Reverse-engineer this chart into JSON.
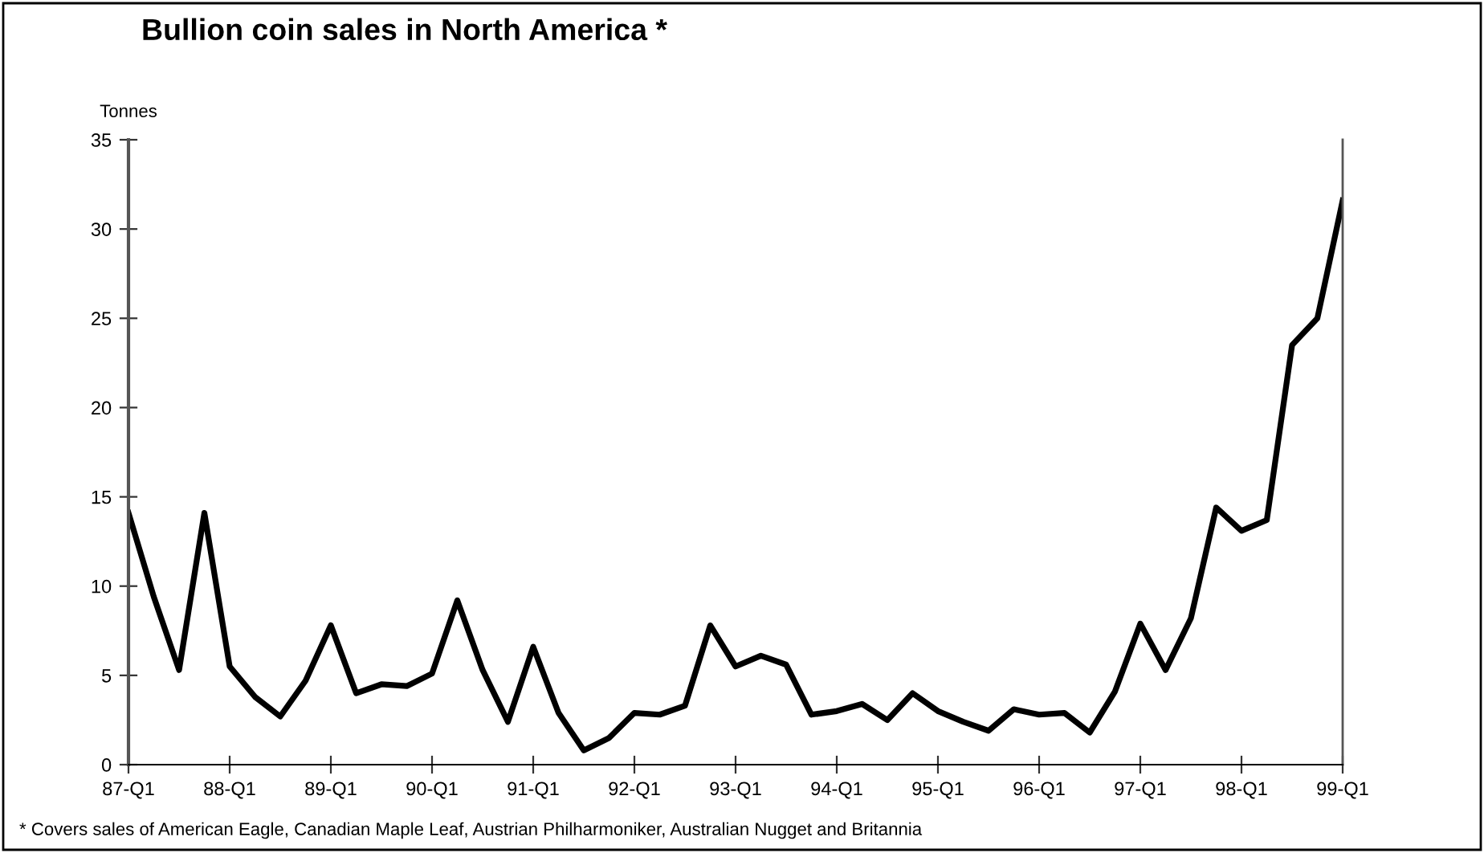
{
  "chart_data": {
    "type": "line",
    "title": "Bullion coin sales in North America *",
    "ylabel": "Tonnes",
    "categories": [
      "87-Q1",
      null,
      null,
      null,
      "88-Q1",
      null,
      null,
      null,
      "89-Q1",
      null,
      null,
      null,
      "90-Q1",
      null,
      null,
      null,
      "91-Q1",
      null,
      null,
      null,
      "92-Q1",
      null,
      null,
      null,
      "93-Q1",
      null,
      null,
      null,
      "94-Q1",
      null,
      null,
      null,
      "95-Q1",
      null,
      null,
      null,
      "96-Q1",
      null,
      null,
      null,
      "97-Q1",
      null,
      null,
      null,
      "98-Q1",
      null,
      null,
      null,
      "99-Q1"
    ],
    "series": [
      {
        "color": "#000000",
        "values": [
          14.1,
          9.4,
          5.3,
          14.1,
          5.5,
          3.8,
          2.7,
          4.7,
          7.8,
          4.0,
          4.5,
          4.4,
          5.1,
          9.2,
          5.3,
          2.4,
          6.6,
          2.9,
          0.8,
          1.5,
          2.9,
          2.8,
          3.3,
          7.8,
          5.5,
          6.1,
          5.6,
          2.8,
          3.0,
          3.4,
          2.5,
          4.0,
          3.0,
          2.4,
          1.9,
          3.1,
          2.8,
          2.9,
          1.8,
          4.1,
          7.9,
          5.3,
          8.2,
          14.4,
          13.1,
          13.7,
          23.5,
          25.0,
          31.6
        ]
      }
    ],
    "ylim": [
      0,
      35
    ],
    "yticks": [
      0,
      5,
      10,
      15,
      20,
      25,
      30,
      35
    ],
    "grid": false,
    "legend": false,
    "marker": "none",
    "line_style": "solid",
    "annotations": [
      "* Covers sales of American Eagle, Canadian Maple Leaf, Austrian Philharmoniker, Australian Nugget and Britannia"
    ]
  }
}
